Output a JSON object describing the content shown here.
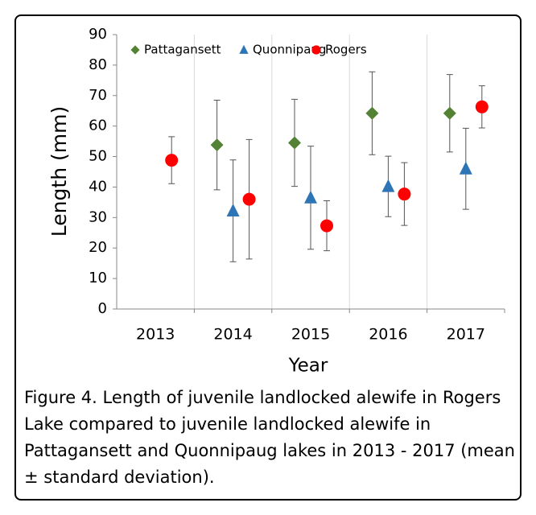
{
  "chart_data": {
    "type": "errorbar-scatter",
    "y_label": "Length (mm)",
    "x_label": "Year",
    "categories": [
      "2013",
      "2014",
      "2015",
      "2016",
      "2017"
    ],
    "ylim": [
      0,
      90
    ],
    "yticks": [
      0,
      10,
      20,
      30,
      40,
      50,
      60,
      70,
      80,
      90
    ],
    "legend": "top",
    "category_separators": true,
    "series": [
      {
        "name": "Pattagansett",
        "color": "#548235",
        "marker": "diamond",
        "values": [
          null,
          53.8,
          54.5,
          64.2,
          64.2
        ],
        "errors": [
          null,
          14.7,
          14.3,
          13.6,
          12.7
        ]
      },
      {
        "name": "Quonnipaug",
        "color": "#2e75b6",
        "marker": "triangle",
        "values": [
          null,
          32.2,
          36.5,
          40.2,
          46.0
        ],
        "errors": [
          null,
          16.7,
          16.9,
          9.9,
          13.3
        ]
      },
      {
        "name": "Rogers",
        "color": "#ff0000",
        "marker": "circle",
        "values": [
          48.8,
          36.0,
          27.3,
          37.7,
          66.3
        ],
        "errors": [
          7.7,
          19.6,
          8.2,
          10.3,
          6.9
        ]
      }
    ]
  },
  "caption": "Figure 4. Length of juvenile landlocked alewife in Rogers Lake compared to juvenile landlocked alewife in Pattagansett and Quonnipaug lakes in 2013 - 2017 (mean ± standard deviation)."
}
